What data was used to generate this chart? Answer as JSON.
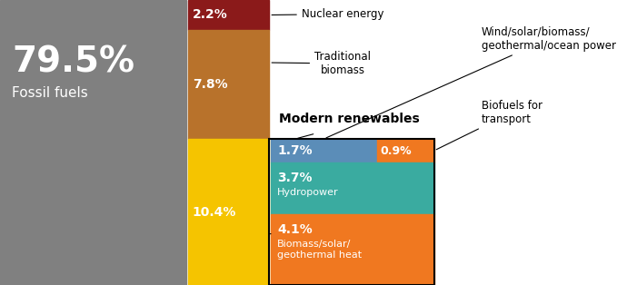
{
  "fossil_fuels": {
    "value": 79.5,
    "color": "#808080",
    "label": "79.5%",
    "sublabel": "Fossil fuels"
  },
  "nuclear": {
    "value": 2.2,
    "color": "#8B1A1A",
    "label": "2.2%",
    "annotation": "Nuclear energy"
  },
  "traditional_biomass": {
    "value": 7.8,
    "color": "#B8722B",
    "label": "7.8%",
    "annotation": "Traditional\nbiomass"
  },
  "modern_renewables_total": {
    "value": 10.4,
    "color": "#F5C400",
    "label": "10.4%"
  },
  "wind_solar": {
    "value": 1.7,
    "color": "#5B8DB8",
    "label": "1.7%",
    "annotation": "Wind/solar/biomass/\ngeothermal/ocean power"
  },
  "biofuels": {
    "value": 0.9,
    "color": "#F07820",
    "label": "0.9%",
    "annotation": "Biofuels for\ntransport"
  },
  "hydropower": {
    "value": 3.7,
    "color": "#3AABA0",
    "label": "3.7%",
    "sublabel": "Hydropower"
  },
  "biomass_heat": {
    "value": 4.1,
    "color": "#F07820",
    "label": "4.1%",
    "sublabel": "Biomass/solar/\ngeothermal heat"
  },
  "modern_renewables_label": "Modern renewables",
  "bg_color": "#FFFFFF"
}
